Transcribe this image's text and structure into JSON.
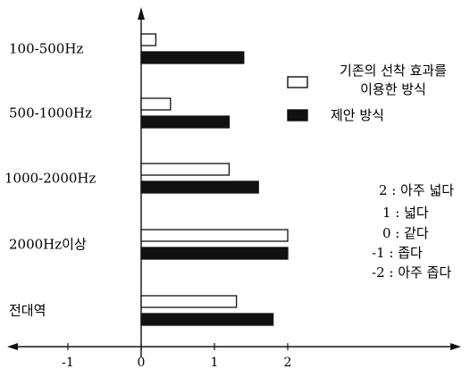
{
  "chart_data": {
    "type": "bar",
    "orientation": "horizontal",
    "title": "",
    "xlabel": "",
    "ylabel": "",
    "xlim": [
      -1.85,
      2.9
    ],
    "x_ticks": [
      "-1",
      "0",
      "1",
      "2"
    ],
    "x_tick_values": [
      -1,
      0,
      1,
      2
    ],
    "grid": false,
    "legend_position": "right",
    "categories": [
      "100-500Hz",
      "500-1000Hz",
      "1000-2000Hz",
      "2000Hz이상",
      "전대역"
    ],
    "series": [
      {
        "name": "기존의 선착 효과를 이용한 방식",
        "values": [
          0.2,
          0.4,
          1.2,
          2.0,
          1.3
        ],
        "fill": "#ffffff"
      },
      {
        "name": "제안 방식",
        "values": [
          1.4,
          1.2,
          1.6,
          2.0,
          1.8
        ],
        "fill": "#111111"
      }
    ],
    "legend": [
      {
        "line1": "기존의 선착 효과를",
        "line2": "이용한 방식"
      },
      {
        "line1": "제안 방식"
      }
    ],
    "scale_legend": [
      "2 : 아주 넓다",
      "1 : 넓다",
      "0 : 같다",
      "-1 : 좁다",
      "-2 : 아주 좁다"
    ]
  }
}
